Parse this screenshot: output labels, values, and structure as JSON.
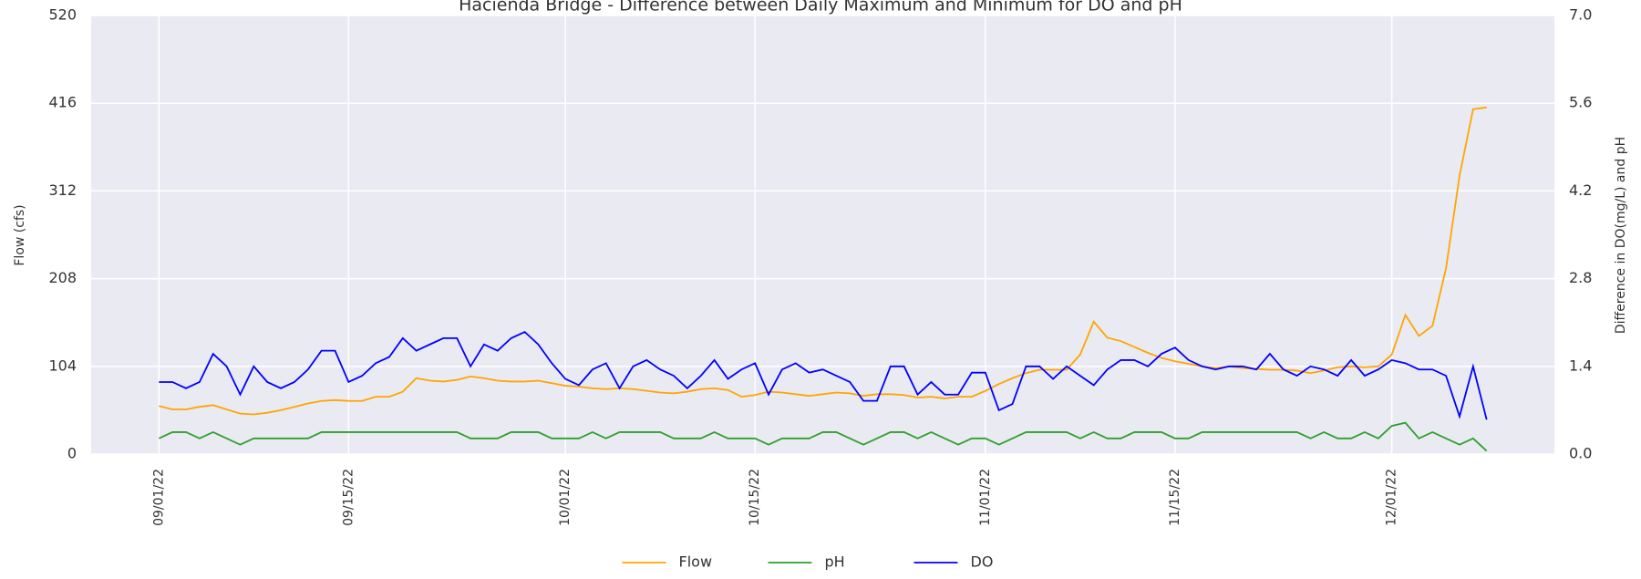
{
  "chart_data": {
    "type": "line",
    "title": "Hacienda Bridge - Difference between Daily Maximum and Minimum for DO and pH",
    "ylabel": "Flow (cfs)",
    "y2label": "Difference in DO(mg/L) and pH",
    "x": [
      "09/01/22",
      "09/02/22",
      "09/03/22",
      "09/04/22",
      "09/05/22",
      "09/06/22",
      "09/07/22",
      "09/08/22",
      "09/09/22",
      "09/10/22",
      "09/11/22",
      "09/12/22",
      "09/13/22",
      "09/14/22",
      "09/15/22",
      "09/16/22",
      "09/17/22",
      "09/18/22",
      "09/19/22",
      "09/20/22",
      "09/21/22",
      "09/22/22",
      "09/23/22",
      "09/24/22",
      "09/25/22",
      "09/26/22",
      "09/27/22",
      "09/28/22",
      "09/29/22",
      "09/30/22",
      "10/01/22",
      "10/02/22",
      "10/03/22",
      "10/04/22",
      "10/05/22",
      "10/06/22",
      "10/07/22",
      "10/08/22",
      "10/09/22",
      "10/10/22",
      "10/11/22",
      "10/12/22",
      "10/13/22",
      "10/14/22",
      "10/15/22",
      "10/16/22",
      "10/17/22",
      "10/18/22",
      "10/19/22",
      "10/20/22",
      "10/21/22",
      "10/22/22",
      "10/23/22",
      "10/24/22",
      "10/25/22",
      "10/26/22",
      "10/27/22",
      "10/28/22",
      "10/29/22",
      "10/30/22",
      "10/31/22",
      "11/01/22",
      "11/02/22",
      "11/03/22",
      "11/04/22",
      "11/05/22",
      "11/06/22",
      "11/07/22",
      "11/08/22",
      "11/09/22",
      "11/10/22",
      "11/11/22",
      "11/12/22",
      "11/13/22",
      "11/14/22",
      "11/15/22",
      "11/16/22",
      "11/17/22",
      "11/18/22",
      "11/19/22",
      "11/20/22",
      "11/21/22",
      "11/22/22",
      "11/23/22",
      "11/24/22",
      "11/25/22",
      "11/26/22",
      "11/27/22",
      "11/28/22",
      "11/29/22",
      "11/30/22",
      "12/01/22",
      "12/02/22",
      "12/03/22",
      "12/04/22",
      "12/05/22",
      "12/06/22",
      "12/07/22",
      "12/08/22"
    ],
    "xlim": [
      "08/27/22",
      "12/13/22"
    ],
    "xticks": [
      "09/01/22",
      "09/15/22",
      "10/01/22",
      "10/15/22",
      "11/01/22",
      "11/15/22",
      "12/01/22"
    ],
    "ylim": [
      0,
      520
    ],
    "yticks": [
      0,
      104,
      208,
      312,
      416,
      520
    ],
    "y2lim": [
      0,
      7
    ],
    "y2ticks": [
      {
        "value": 0,
        "label": "0.0"
      },
      1.4,
      2.8,
      4.2,
      5.6,
      {
        "value": 7,
        "label": "7.0"
      }
    ],
    "grid": true,
    "legend": "lower center",
    "series": [
      {
        "name": "Flow",
        "color": "#ffa500",
        "values": [
          57,
          53,
          53,
          56,
          58,
          53,
          48,
          47,
          49,
          52,
          56,
          60,
          63,
          64,
          63,
          63,
          68,
          68,
          74,
          90,
          87,
          86,
          88,
          92,
          90,
          87,
          86,
          86,
          87,
          84,
          81,
          80,
          78,
          77,
          78,
          77,
          75,
          73,
          72,
          74,
          77,
          78,
          76,
          68,
          70,
          74,
          73,
          71,
          69,
          71,
          73,
          72,
          69,
          71,
          71,
          70,
          67,
          68,
          66,
          68,
          68,
          75,
          83,
          90,
          96,
          100,
          100,
          100,
          118,
          157,
          138,
          134,
          127,
          120,
          114,
          110,
          107,
          104,
          102,
          104,
          102,
          101,
          100,
          100,
          99,
          96,
          99,
          103,
          104,
          103,
          104,
          118,
          165,
          140,
          152,
          220,
          330,
          409,
          411
        ]
      },
      {
        "name": "pH",
        "color": "#2ca02c",
        "axis": "y2",
        "values": [
          0.25,
          0.35,
          0.35,
          0.25,
          0.35,
          0.25,
          0.15,
          0.25,
          0.25,
          0.25,
          0.25,
          0.25,
          0.35,
          0.35,
          0.35,
          0.35,
          0.35,
          0.35,
          0.35,
          0.35,
          0.35,
          0.35,
          0.35,
          0.25,
          0.25,
          0.25,
          0.35,
          0.35,
          0.35,
          0.25,
          0.25,
          0.25,
          0.35,
          0.25,
          0.35,
          0.35,
          0.35,
          0.35,
          0.25,
          0.25,
          0.25,
          0.35,
          0.25,
          0.25,
          0.25,
          0.15,
          0.25,
          0.25,
          0.25,
          0.35,
          0.35,
          0.25,
          0.15,
          0.25,
          0.35,
          0.35,
          0.25,
          0.35,
          0.25,
          0.15,
          0.25,
          0.25,
          0.15,
          0.25,
          0.35,
          0.35,
          0.35,
          0.35,
          0.25,
          0.35,
          0.25,
          0.25,
          0.35,
          0.35,
          0.35,
          0.25,
          0.25,
          0.35,
          0.35,
          0.35,
          0.35,
          0.35,
          0.35,
          0.35,
          0.35,
          0.25,
          0.35,
          0.25,
          0.25,
          0.35,
          0.25,
          0.45,
          0.5,
          0.25,
          0.35,
          0.25,
          0.15,
          0.25,
          0.05
        ]
      },
      {
        "name": "DO",
        "color": "#0000ff",
        "axis": "y2",
        "values": [
          1.15,
          1.15,
          1.05,
          1.15,
          1.6,
          1.4,
          0.95,
          1.4,
          1.15,
          1.05,
          1.15,
          1.35,
          1.65,
          1.65,
          1.15,
          1.25,
          1.45,
          1.55,
          1.85,
          1.65,
          1.75,
          1.85,
          1.85,
          1.4,
          1.75,
          1.65,
          1.85,
          1.95,
          1.75,
          1.45,
          1.2,
          1.1,
          1.35,
          1.45,
          1.05,
          1.4,
          1.5,
          1.35,
          1.25,
          1.05,
          1.25,
          1.5,
          1.2,
          1.35,
          1.45,
          0.95,
          1.35,
          1.45,
          1.3,
          1.35,
          1.25,
          1.15,
          0.85,
          0.85,
          1.4,
          1.4,
          0.95,
          1.15,
          0.95,
          0.95,
          1.3,
          1.3,
          0.7,
          0.8,
          1.4,
          1.4,
          1.2,
          1.4,
          1.25,
          1.1,
          1.35,
          1.5,
          1.5,
          1.4,
          1.6,
          1.7,
          1.5,
          1.4,
          1.35,
          1.4,
          1.4,
          1.35,
          1.6,
          1.35,
          1.25,
          1.4,
          1.35,
          1.25,
          1.5,
          1.25,
          1.35,
          1.5,
          1.45,
          1.35,
          1.35,
          1.25,
          0.6,
          1.4,
          0.55
        ]
      }
    ]
  }
}
